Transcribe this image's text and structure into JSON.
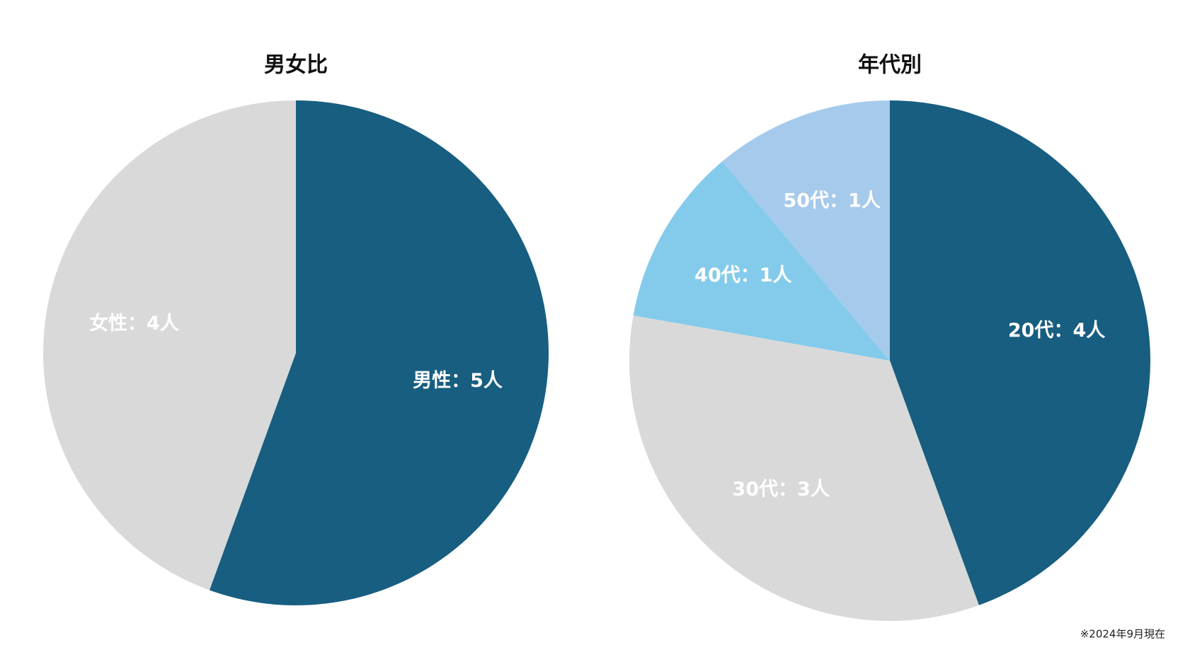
{
  "chart_data": [
    {
      "type": "pie",
      "title": "男女比",
      "values": [
        5,
        4
      ],
      "value_labels": [
        "男性：5人",
        "女性：4人"
      ],
      "colors": [
        "#175e80",
        "#d9d9d9"
      ]
    },
    {
      "type": "pie",
      "title": "年代別",
      "values": [
        4,
        3,
        1,
        1
      ],
      "value_labels": [
        "20代：4人",
        "30代：3人",
        "40代：1人",
        "50代：1人"
      ],
      "colors": [
        "#175e80",
        "#d9d9d9",
        "#84cbeb",
        "#a6caeb"
      ]
    }
  ],
  "footnote": "※2024年9月現在"
}
